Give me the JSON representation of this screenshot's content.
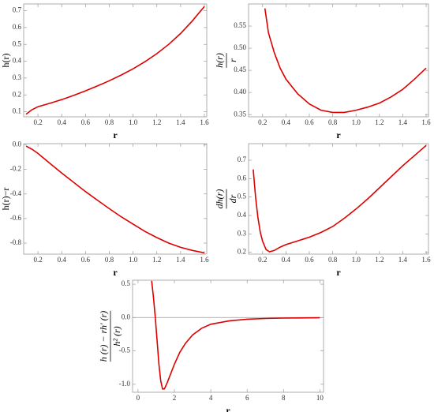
{
  "chart_data": [
    {
      "type": "line",
      "xlabel": "r",
      "ylabel": "h(r)",
      "x": [
        0.1,
        0.15,
        0.2,
        0.3,
        0.4,
        0.5,
        0.6,
        0.7,
        0.8,
        0.9,
        1.0,
        1.1,
        1.2,
        1.3,
        1.4,
        1.5,
        1.6
      ],
      "values": [
        0.085,
        0.112,
        0.13,
        0.15,
        0.172,
        0.197,
        0.224,
        0.253,
        0.284,
        0.318,
        0.355,
        0.397,
        0.445,
        0.5,
        0.565,
        0.64,
        0.725
      ],
      "color": "#dd0000",
      "xlim": [
        0.08,
        1.62
      ],
      "ylim": [
        0.07,
        0.74
      ],
      "xticks": [
        0.2,
        0.4,
        0.6,
        0.8,
        {
          "value": 1.0,
          "label": "1.0"
        },
        1.2,
        1.4,
        1.6
      ],
      "yticks": [
        0.1,
        0.2,
        0.3,
        0.4,
        0.5,
        0.6,
        0.7
      ]
    },
    {
      "type": "line",
      "xlabel": "r",
      "ylabel": {
        "numerator": "h(r)",
        "denominator": "r"
      },
      "x": [
        0.22,
        0.25,
        0.3,
        0.35,
        0.4,
        0.5,
        0.6,
        0.7,
        0.8,
        0.9,
        1.0,
        1.1,
        1.2,
        1.3,
        1.4,
        1.5,
        1.6
      ],
      "values": [
        0.59,
        0.535,
        0.49,
        0.455,
        0.43,
        0.397,
        0.374,
        0.36,
        0.355,
        0.355,
        0.36,
        0.367,
        0.376,
        0.39,
        0.407,
        0.43,
        0.455
      ],
      "color": "#dd0000",
      "xlim": [
        0.08,
        1.62
      ],
      "ylim": [
        0.345,
        0.6
      ],
      "xticks": [
        0.2,
        0.4,
        0.6,
        0.8,
        {
          "value": 1.0,
          "label": "1.0"
        },
        1.2,
        1.4,
        1.6
      ],
      "yticks": [
        0.35,
        {
          "value": 0.4,
          "label": "0.40"
        },
        0.45,
        {
          "value": 0.5,
          "label": "0.50"
        },
        0.55
      ]
    },
    {
      "type": "line",
      "xlabel": "r",
      "ylabel": "h(r)−r",
      "x": [
        0.1,
        0.15,
        0.2,
        0.3,
        0.4,
        0.5,
        0.6,
        0.7,
        0.8,
        0.9,
        1.0,
        1.1,
        1.2,
        1.3,
        1.4,
        1.5,
        1.6
      ],
      "values": [
        -0.01,
        -0.035,
        -0.07,
        -0.15,
        -0.23,
        -0.305,
        -0.38,
        -0.45,
        -0.52,
        -0.585,
        -0.645,
        -0.705,
        -0.755,
        -0.8,
        -0.835,
        -0.86,
        -0.88
      ],
      "color": "#dd0000",
      "xlim": [
        0.08,
        1.62
      ],
      "ylim": [
        -0.89,
        0.01
      ],
      "xticks": [
        0.2,
        0.4,
        0.6,
        0.8,
        {
          "value": 1.0,
          "label": "1.0"
        },
        1.2,
        1.4,
        1.6
      ],
      "yticks": [
        {
          "value": 0,
          "label": "0.0"
        },
        -0.2,
        -0.4,
        -0.6,
        -0.8
      ]
    },
    {
      "type": "line",
      "xlabel": "r",
      "ylabel": {
        "numerator": "dh(r)",
        "denominator": "dr"
      },
      "x": [
        0.12,
        0.14,
        0.16,
        0.18,
        0.2,
        0.23,
        0.26,
        0.3,
        0.35,
        0.4,
        0.5,
        0.6,
        0.7,
        0.8,
        0.9,
        1.0,
        1.1,
        1.2,
        1.3,
        1.4,
        1.5,
        1.6
      ],
      "values": [
        0.65,
        0.5,
        0.39,
        0.31,
        0.26,
        0.215,
        0.203,
        0.21,
        0.228,
        0.242,
        0.262,
        0.282,
        0.308,
        0.34,
        0.385,
        0.435,
        0.49,
        0.55,
        0.61,
        0.67,
        0.725,
        0.78
      ],
      "color": "#dd0000",
      "xlim": [
        0.08,
        1.62
      ],
      "ylim": [
        0.19,
        0.79
      ],
      "xticks": [
        0.2,
        0.4,
        0.6,
        0.8,
        {
          "value": 1.0,
          "label": "1.0"
        },
        1.2,
        1.4,
        1.6
      ],
      "yticks": [
        0.2,
        0.3,
        0.4,
        0.5,
        0.6,
        0.7
      ]
    },
    {
      "type": "line",
      "xlabel": "r",
      "ylabel": {
        "numerator": "h (r) − rh′ (r)",
        "denominator": "h² (r)"
      },
      "x": [
        0.75,
        0.85,
        0.95,
        1.05,
        1.15,
        1.25,
        1.35,
        1.45,
        1.6,
        1.8,
        2.0,
        2.3,
        2.6,
        3.0,
        3.5,
        4.0,
        5.0,
        6.0,
        7.0,
        8.0,
        10.0
      ],
      "values": [
        0.55,
        0.3,
        0.0,
        -0.35,
        -0.7,
        -0.95,
        -1.07,
        -1.07,
        -0.98,
        -0.84,
        -0.7,
        -0.52,
        -0.39,
        -0.26,
        -0.16,
        -0.1,
        -0.05,
        -0.025,
        -0.014,
        -0.008,
        -0.003
      ],
      "color": "#dd0000",
      "xlim": [
        -0.3,
        10.2
      ],
      "ylim": [
        -1.12,
        0.56
      ],
      "xticks": [
        0,
        2,
        4,
        6,
        8,
        10
      ],
      "yticks": [
        0.5,
        {
          "value": 0,
          "label": "0.0"
        },
        -0.5,
        {
          "value": -1.0,
          "label": "-1.0"
        }
      ]
    }
  ]
}
